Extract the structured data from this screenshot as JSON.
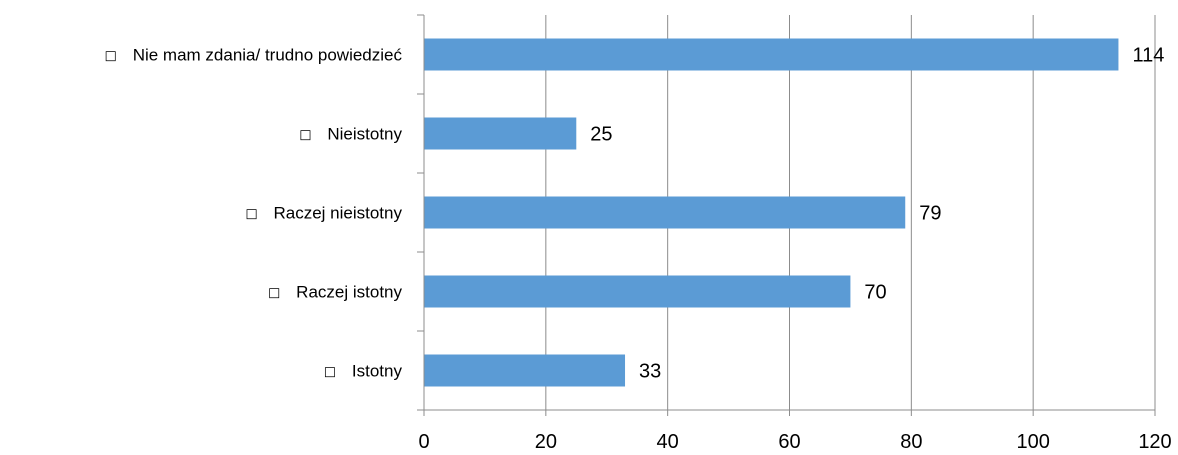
{
  "chart_data": {
    "type": "bar",
    "orientation": "horizontal",
    "categories": [
      "Nie mam zdania/ trudno powiedzieć",
      "Nieistotny",
      "Raczej nieistotny",
      "Raczej istotny",
      "Istotny"
    ],
    "category_marker": "□",
    "series": [
      {
        "values": [
          114,
          25,
          79,
          70,
          33
        ],
        "color": "#5b9bd5"
      }
    ],
    "xlim": [
      0,
      120
    ],
    "x_ticks": [
      0,
      20,
      40,
      60,
      80,
      100,
      120
    ],
    "grid": true,
    "legend": "none",
    "data_labels": true,
    "title": "",
    "xlabel": "",
    "ylabel": ""
  }
}
